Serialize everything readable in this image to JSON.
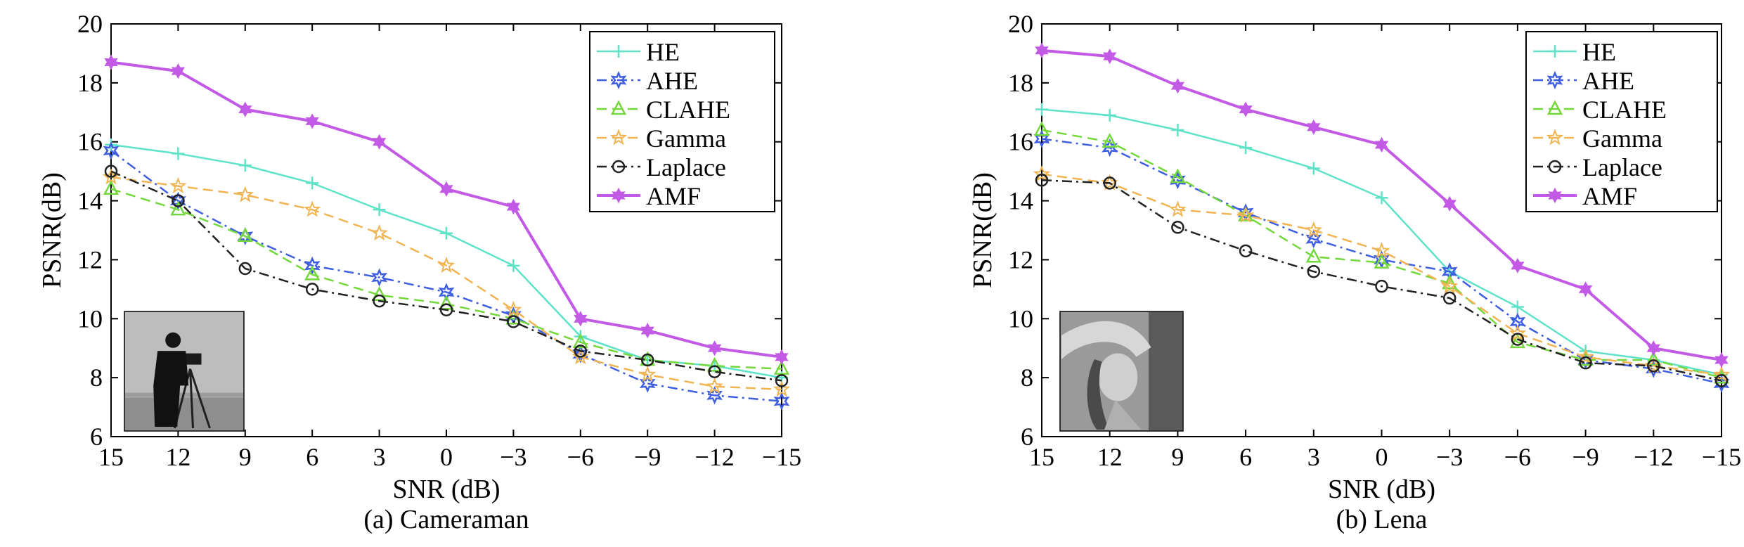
{
  "chart_data": [
    {
      "type": "line",
      "caption": "(a) Cameraman",
      "xlabel": "SNR (dB)",
      "ylabel": "PSNR(dB)",
      "x": [
        15,
        12,
        9,
        6,
        3,
        0,
        -3,
        -6,
        -9,
        -12,
        -15
      ],
      "x_tick_labels": [
        "15",
        "12",
        "9",
        "6",
        "3",
        "0",
        "−3",
        "−6",
        "−9",
        "−12",
        "−15"
      ],
      "ylim": [
        6,
        20
      ],
      "y_ticks": [
        6,
        8,
        10,
        12,
        14,
        16,
        18,
        20
      ],
      "grid": false,
      "legend_position": "top-right",
      "inset_image": "cameraman",
      "series": [
        {
          "name": "HE",
          "color": "#5fe3c8",
          "marker": "plus",
          "dash": "solid",
          "values": [
            15.9,
            15.6,
            15.2,
            14.6,
            13.7,
            12.9,
            11.8,
            9.4,
            8.6,
            8.4,
            8.0
          ]
        },
        {
          "name": "AHE",
          "color": "#3f5ee0",
          "marker": "star6",
          "dash": "dashdot",
          "values": [
            15.7,
            14.0,
            12.8,
            11.8,
            11.4,
            10.9,
            10.1,
            8.8,
            7.8,
            7.4,
            7.2
          ]
        },
        {
          "name": "CLAHE",
          "color": "#74d83c",
          "marker": "triangle",
          "dash": "dashed",
          "values": [
            14.4,
            13.7,
            12.8,
            11.5,
            10.8,
            10.5,
            10.0,
            9.2,
            8.6,
            8.4,
            8.3
          ]
        },
        {
          "name": "Gamma",
          "color": "#f0b452",
          "marker": "star",
          "dash": "dashed",
          "values": [
            14.8,
            14.5,
            14.2,
            13.7,
            12.9,
            11.8,
            10.3,
            8.7,
            8.1,
            7.7,
            7.6
          ]
        },
        {
          "name": "Laplace",
          "color": "#222222",
          "marker": "circle",
          "dash": "dashdot",
          "values": [
            15.0,
            14.0,
            11.7,
            11.0,
            10.6,
            10.3,
            9.9,
            8.9,
            8.6,
            8.2,
            7.9
          ]
        },
        {
          "name": "AMF",
          "color": "#c25ae6",
          "marker": "hexagram",
          "dash": "solid",
          "values": [
            18.7,
            18.4,
            17.1,
            16.7,
            16.0,
            14.4,
            13.8,
            10.0,
            9.6,
            9.0,
            8.7
          ]
        }
      ]
    },
    {
      "type": "line",
      "caption": "(b) Lena",
      "xlabel": "SNR (dB)",
      "ylabel": "PSNR(dB)",
      "x": [
        15,
        12,
        9,
        6,
        3,
        0,
        -3,
        -6,
        -9,
        -12,
        -15
      ],
      "x_tick_labels": [
        "15",
        "12",
        "9",
        "6",
        "3",
        "0",
        "−3",
        "−6",
        "−9",
        "−12",
        "−15"
      ],
      "ylim": [
        6,
        20
      ],
      "y_ticks": [
        6,
        8,
        10,
        12,
        14,
        16,
        18,
        20
      ],
      "grid": false,
      "legend_position": "top-right",
      "inset_image": "lena",
      "series": [
        {
          "name": "HE",
          "color": "#5fe3c8",
          "marker": "plus",
          "dash": "solid",
          "values": [
            17.1,
            16.9,
            16.4,
            15.8,
            15.1,
            14.1,
            11.6,
            10.4,
            8.9,
            8.6,
            8.1
          ]
        },
        {
          "name": "AHE",
          "color": "#3f5ee0",
          "marker": "star6",
          "dash": "dashdot",
          "values": [
            16.1,
            15.8,
            14.7,
            13.6,
            12.7,
            12.0,
            11.6,
            9.9,
            8.6,
            8.3,
            7.8
          ]
        },
        {
          "name": "CLAHE",
          "color": "#74d83c",
          "marker": "triangle",
          "dash": "dashed",
          "values": [
            16.4,
            16.0,
            14.8,
            13.5,
            12.1,
            11.9,
            11.2,
            9.2,
            8.6,
            8.6,
            8.0
          ]
        },
        {
          "name": "Gamma",
          "color": "#f0b452",
          "marker": "star",
          "dash": "dashed",
          "values": [
            14.9,
            14.6,
            13.7,
            13.5,
            13.0,
            12.3,
            11.1,
            9.5,
            8.7,
            8.4,
            8.1
          ]
        },
        {
          "name": "Laplace",
          "color": "#222222",
          "marker": "circle",
          "dash": "dashdot",
          "values": [
            14.7,
            14.6,
            13.1,
            12.3,
            11.6,
            11.1,
            10.7,
            9.3,
            8.5,
            8.4,
            7.9
          ]
        },
        {
          "name": "AMF",
          "color": "#c25ae6",
          "marker": "hexagram",
          "dash": "solid",
          "values": [
            19.1,
            18.9,
            17.9,
            17.1,
            16.5,
            15.9,
            13.9,
            11.8,
            11.0,
            9.0,
            8.6
          ]
        }
      ]
    }
  ]
}
